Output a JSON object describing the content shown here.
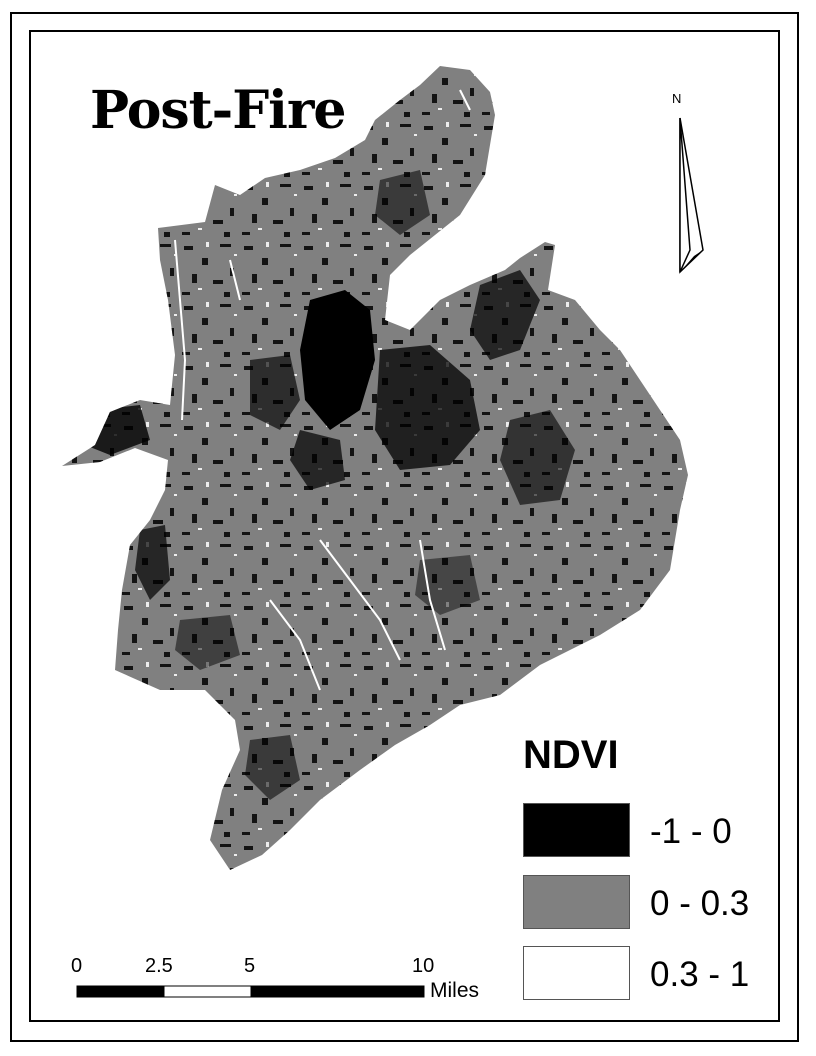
{
  "map": {
    "title": "Post-Fire",
    "north_label": "N",
    "legend": {
      "title": "NDVI",
      "items": [
        {
          "label": "-1 - 0",
          "color": "#000000"
        },
        {
          "label": "0 - 0.3",
          "color": "#808080"
        },
        {
          "label": "0.3 - 1",
          "color": "#ffffff"
        }
      ]
    },
    "scale_bar": {
      "ticks": [
        "0",
        "2.5",
        "5",
        "10"
      ],
      "units": "Miles"
    }
  }
}
